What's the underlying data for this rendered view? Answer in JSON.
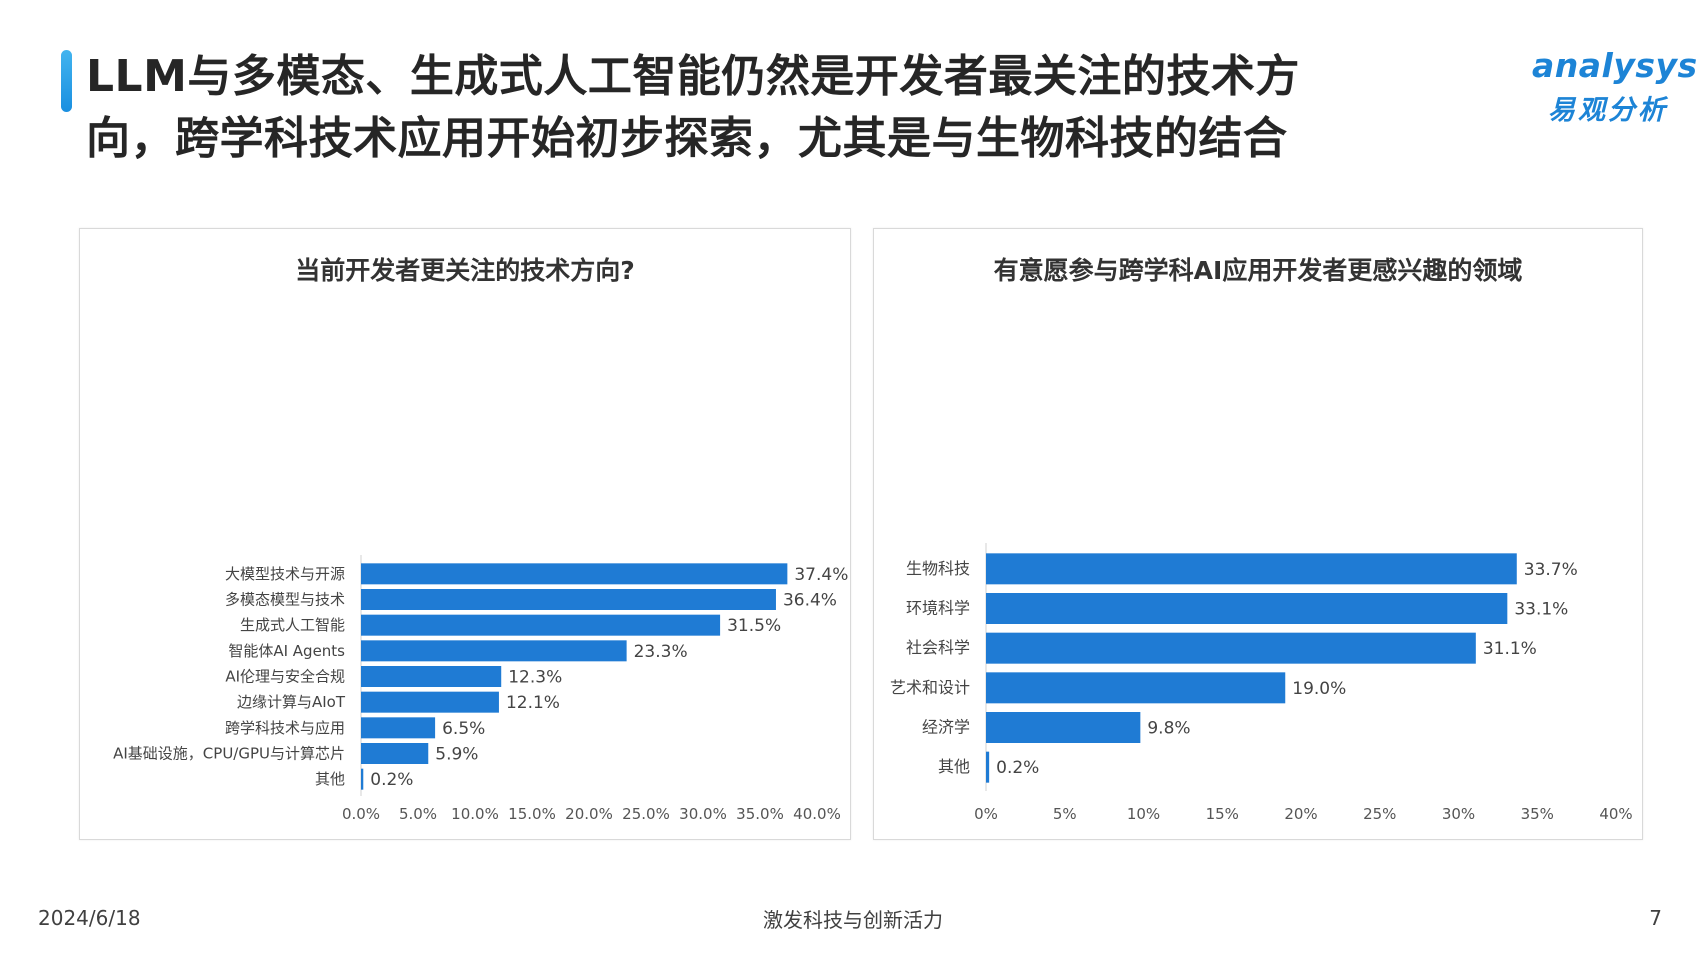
{
  "header": {
    "title_line1": "LLM与多模态、生成式人工智能仍然是开发者最关注的技术方",
    "title_line2": "向，跨学科技术应用开始初步探索，尤其是与生物科技的结合",
    "accent_color": "#1a8fe0"
  },
  "logo": {
    "wordmark": "analysys",
    "chinese": "易观分析",
    "brand_color": "#1d84d6",
    "accent_color": "#f08a1c"
  },
  "chart_data": [
    {
      "type": "bar",
      "orientation": "horizontal",
      "title": "当前开发者更关注的技术方向?",
      "categories": [
        "大模型技术与开源",
        "多模态模型与技术",
        "生成式人工智能",
        "智能体AI Agents",
        "AI伦理与安全合规",
        "边缘计算与AIoT",
        "跨学科技术与应用",
        "AI基础设施，CPU/GPU与计算芯片",
        "其他"
      ],
      "values": [
        37.4,
        36.4,
        31.5,
        23.3,
        12.3,
        12.1,
        6.5,
        5.9,
        0.2
      ],
      "value_labels": [
        "37.4%",
        "36.4%",
        "31.5%",
        "23.3%",
        "12.3%",
        "12.1%",
        "6.5%",
        "5.9%",
        "0.2%"
      ],
      "xlim": [
        0,
        40
      ],
      "xticks": [
        0,
        5,
        10,
        15,
        20,
        25,
        30,
        35,
        40
      ],
      "xtick_labels": [
        "0.0%",
        "5.0%",
        "10.0%",
        "15.0%",
        "20.0%",
        "25.0%",
        "30.0%",
        "35.0%",
        "40.0%"
      ],
      "xlabel": "",
      "ylabel": "",
      "grid": false,
      "bar_color": "#1f7bd4"
    },
    {
      "type": "bar",
      "orientation": "horizontal",
      "title": "有意愿参与跨学科AI应用开发者更感兴趣的领域",
      "categories": [
        "生物科技",
        "环境科学",
        "社会科学",
        "艺术和设计",
        "经济学",
        "其他"
      ],
      "values": [
        33.7,
        33.1,
        31.1,
        19.0,
        9.8,
        0.2
      ],
      "value_labels": [
        "33.7%",
        "33.1%",
        "31.1%",
        "19.0%",
        "9.8%",
        "0.2%"
      ],
      "xlim": [
        0,
        40
      ],
      "xticks": [
        0,
        5,
        10,
        15,
        20,
        25,
        30,
        35,
        40
      ],
      "xtick_labels": [
        "0%",
        "5%",
        "10%",
        "15%",
        "20%",
        "25%",
        "30%",
        "35%",
        "40%"
      ],
      "xlabel": "",
      "ylabel": "",
      "grid": false,
      "bar_color": "#1f7bd4"
    }
  ],
  "footer": {
    "date": "2024/6/18",
    "slogan": "激发科技与创新活力",
    "page_number": "7"
  }
}
